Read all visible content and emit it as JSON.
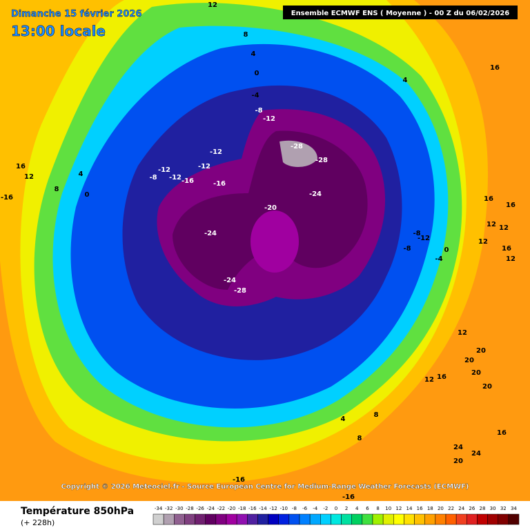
{
  "header": {
    "date": "Dimanche 15 février 2026",
    "time": "13:00 locale",
    "model": "Ensemble ECMWF ENS  ( Moyenne )  -  00 Z du 06/02/2026"
  },
  "copyright": "Copyright © 2026 Meteociel.fr - Source European Centre for Medium-Range Weather Forecasts (ECMWF)",
  "map": {
    "contour_labels": [
      "12",
      "8",
      "4",
      "0",
      "-4",
      "-8",
      "-12",
      "-28",
      "-28",
      "-12",
      "-12",
      "-12",
      "-8",
      "-12",
      "-16",
      "-16",
      "-24",
      "-20",
      "-24",
      "-24",
      "-28",
      "16",
      "4",
      "16",
      "12",
      "4",
      "8",
      "0",
      "-16",
      "16",
      "16",
      "12",
      "12",
      "12",
      "16",
      "12",
      "-8",
      "-12",
      "-8",
      "0",
      "-4",
      "12",
      "20",
      "20",
      "20",
      "16",
      "12",
      "20",
      "8",
      "4",
      "8",
      "16",
      "24",
      "24",
      "20",
      "-16",
      "-16"
    ]
  },
  "legend": {
    "title": "Température 850hPa",
    "subtitle": "(+ 228h)",
    "scale": [
      -34,
      -32,
      -30,
      -28,
      -26,
      -24,
      -22,
      -20,
      -18,
      -16,
      -14,
      -12,
      -10,
      -8,
      -6,
      -4,
      -2,
      0,
      2,
      4,
      6,
      8,
      10,
      12,
      14,
      16,
      18,
      20,
      22,
      24,
      26,
      28,
      30,
      32,
      34
    ],
    "colors": [
      "#d0d0d0",
      "#b0a0b0",
      "#906090",
      "#804080",
      "#702070",
      "#600060",
      "#800080",
      "#a000a0",
      "#9010b0",
      "#5020a0",
      "#2020a0",
      "#0000c0",
      "#0020e0",
      "#0050f0",
      "#0080ff",
      "#00a8ff",
      "#00d0ff",
      "#00e8e0",
      "#00e0a0",
      "#00d060",
      "#40e040",
      "#a0f000",
      "#e0f000",
      "#ffff00",
      "#ffe000",
      "#ffc000",
      "#ffa000",
      "#ff8000",
      "#ff6000",
      "#f04020",
      "#e02020",
      "#c00000",
      "#a00000",
      "#800000",
      "#500000"
    ]
  }
}
